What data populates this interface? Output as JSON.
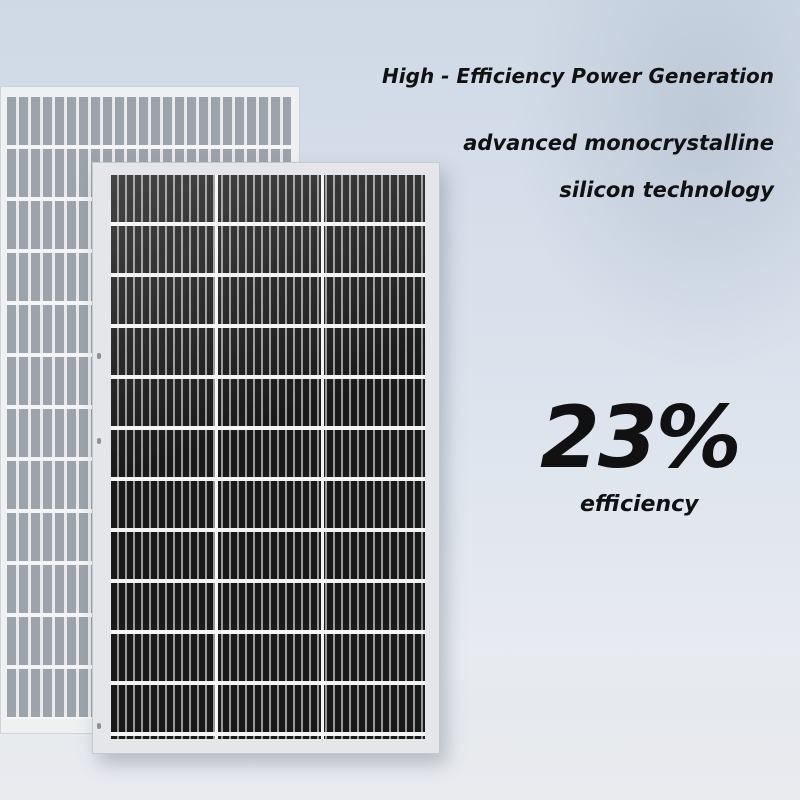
{
  "headline": "High - Efficiency Power Generation",
  "subline_1": "advanced monocrystalline",
  "subline_2": "silicon technology",
  "stat_value": "23%",
  "stat_label": "efficiency",
  "colors": {
    "text": "#111111",
    "background": "#d6dfea",
    "cell": "#1a1a1a"
  }
}
